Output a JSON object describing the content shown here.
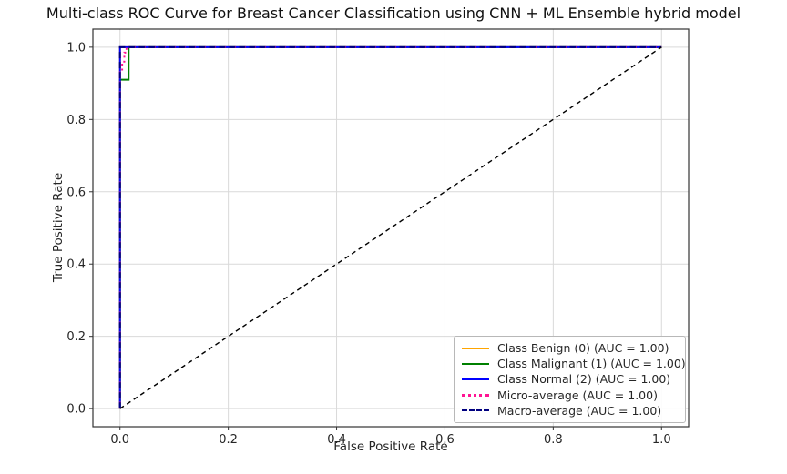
{
  "chart_data": {
    "type": "line",
    "title": "Multi-class ROC Curve for Breast Cancer Classification using CNN + ML Ensemble hybrid model",
    "xlabel": "False Positive Rate",
    "ylabel": "True Positive Rate",
    "xlim": [
      -0.05,
      1.05
    ],
    "ylim": [
      -0.05,
      1.05
    ],
    "xticks": [
      0.0,
      0.2,
      0.4,
      0.6,
      0.8,
      1.0
    ],
    "yticks": [
      0.0,
      0.2,
      0.4,
      0.6,
      0.8,
      1.0
    ],
    "grid": true,
    "grid_color": "#d9d9d9",
    "legend_position": "lower right",
    "series": [
      {
        "name": "Class Benign (0) (AUC = 1.00)",
        "auc": 1.0,
        "color": "#ffa500",
        "style": "solid",
        "points": [
          [
            0,
            0
          ],
          [
            0,
            1
          ],
          [
            1,
            1
          ]
        ]
      },
      {
        "name": "Class Malignant (1) (AUC = 1.00)",
        "auc": 1.0,
        "color": "#008000",
        "style": "solid",
        "points": [
          [
            0,
            0
          ],
          [
            0,
            0.91
          ],
          [
            0.016,
            0.91
          ],
          [
            0.016,
            1
          ],
          [
            1,
            1
          ]
        ]
      },
      {
        "name": "Class Normal (2) (AUC = 1.00)",
        "auc": 1.0,
        "color": "#0000ff",
        "style": "solid",
        "points": [
          [
            0,
            0
          ],
          [
            0,
            1
          ],
          [
            1,
            1
          ]
        ]
      },
      {
        "name": "Micro-average (AUC = 1.00)",
        "auc": 1.0,
        "color": "#ff1493",
        "style": "dotted",
        "points": [
          [
            0,
            0
          ],
          [
            0,
            0.93
          ],
          [
            0.004,
            0.93
          ],
          [
            0.004,
            0.96
          ],
          [
            0.008,
            0.96
          ],
          [
            0.008,
            0.985
          ],
          [
            0.012,
            0.985
          ],
          [
            0.012,
            1
          ],
          [
            1,
            1
          ]
        ]
      },
      {
        "name": "Macro-average (AUC = 1.00)",
        "auc": 1.0,
        "color": "#000080",
        "style": "dashed",
        "points": [
          [
            0,
            0
          ],
          [
            0,
            1
          ],
          [
            1,
            1
          ]
        ]
      }
    ],
    "reference_line": {
      "name": "chance-diagonal",
      "color": "#000000",
      "style": "dashed",
      "points": [
        [
          0,
          0
        ],
        [
          1,
          1
        ]
      ]
    }
  }
}
